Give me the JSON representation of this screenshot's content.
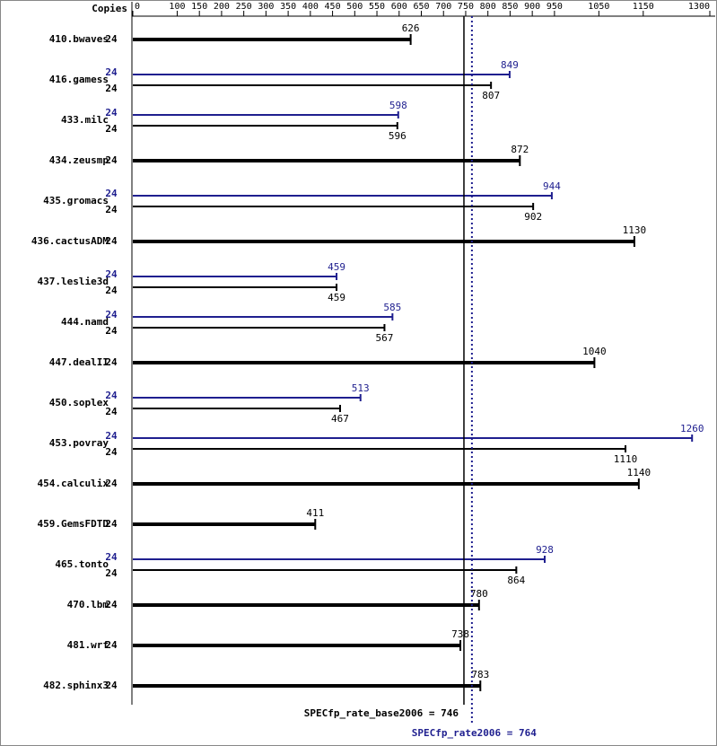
{
  "chart_data": {
    "type": "bar",
    "orientation": "horizontal",
    "copies_header": "Copies",
    "categories": [
      "410.bwaves",
      "416.gamess",
      "433.milc",
      "434.zeusmp",
      "435.gromacs",
      "436.cactusADM",
      "437.leslie3d",
      "444.namd",
      "447.dealII",
      "450.soplex",
      "453.povray",
      "454.calculix",
      "459.GemsFDTD",
      "465.tonto",
      "470.lbm",
      "481.wrf",
      "482.sphinx3"
    ],
    "copies": [
      24,
      24,
      24,
      24,
      24,
      24,
      24,
      24,
      24,
      24,
      24,
      24,
      24,
      24,
      24,
      24,
      24
    ],
    "peak_copies": [
      null,
      24,
      24,
      null,
      24,
      null,
      24,
      24,
      null,
      24,
      24,
      null,
      null,
      24,
      null,
      null,
      null
    ],
    "series": [
      {
        "color": "#000000",
        "values": [
          626,
          807,
          596,
          872,
          902,
          1130,
          459,
          567,
          1040,
          467,
          1110,
          1140,
          411,
          864,
          780,
          738,
          783
        ]
      },
      {
        "color": "#1f1f8f",
        "values": [
          null,
          849,
          598,
          null,
          944,
          null,
          459,
          585,
          null,
          513,
          1260,
          null,
          null,
          928,
          null,
          null,
          null
        ]
      }
    ],
    "xlim": [
      0,
      1300
    ],
    "xticks": [
      0,
      100,
      150,
      200,
      250,
      300,
      350,
      400,
      450,
      500,
      550,
      600,
      650,
      700,
      750,
      800,
      850,
      900,
      950,
      1050,
      1150,
      1300
    ],
    "means": [
      {
        "text": "SPECfp_rate_base2006 = 746",
        "value": 746,
        "color": "#000000",
        "style": "solid"
      },
      {
        "text": "SPECfp_rate2006 = 764",
        "value": 764,
        "color": "#1f1f8f",
        "style": "dotted"
      }
    ]
  }
}
